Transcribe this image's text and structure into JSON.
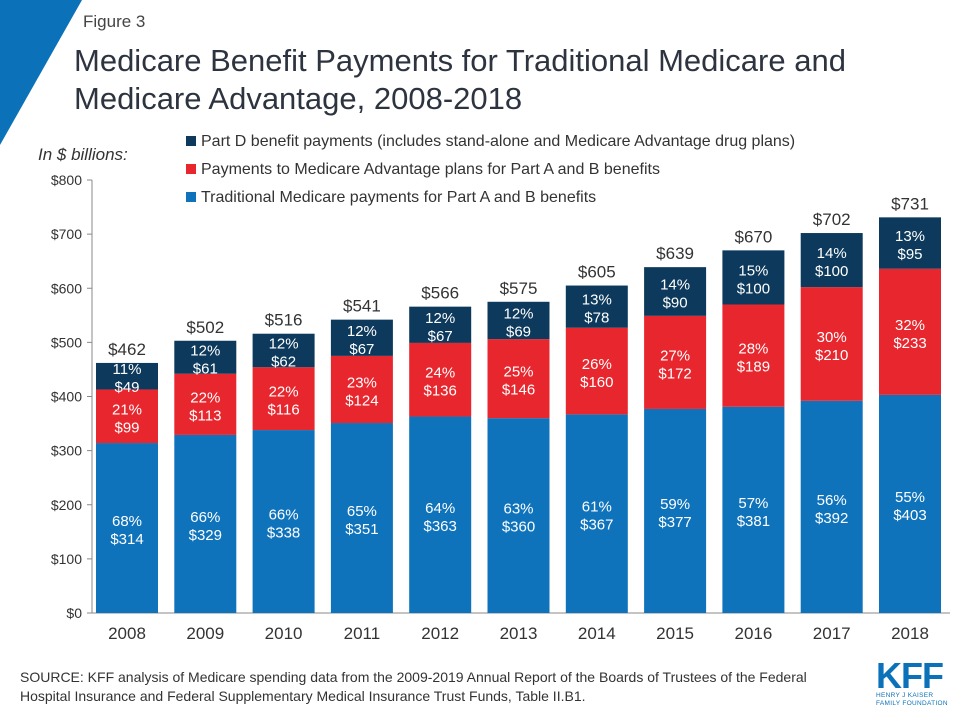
{
  "figure_label": "Figure 3",
  "title": "Medicare Benefit Payments for Traditional Medicare and Medicare Advantage, 2008-2018",
  "source": "SOURCE: KFF analysis of Medicare spending data from the 2009-2019 Annual Report of the Boards of Trustees of the Federal Hospital Insurance  and Federal Supplementary Medical Insurance  Trust Funds, Table II.B1.",
  "logo": {
    "text": "KFF",
    "subtitle_line1": "HENRY J KAISER",
    "subtitle_line2": "FAMILY FOUNDATION"
  },
  "colors": {
    "accent_triangle": "#0b72b9",
    "traditional": "#0f73bc",
    "advantage": "#e8262d",
    "partd": "#0d3a5c"
  },
  "chart_data": {
    "type": "bar",
    "stacked": true,
    "ylabel": "In $ billions:",
    "ylim": [
      0,
      800
    ],
    "yticks": [
      "$0",
      "$100",
      "$200",
      "$300",
      "$400",
      "$500",
      "$600",
      "$700",
      "$800"
    ],
    "ytick_values": [
      0,
      100,
      200,
      300,
      400,
      500,
      600,
      700,
      800
    ],
    "grid": false,
    "legend_position": "top",
    "categories": [
      "2008",
      "2009",
      "2010",
      "2011",
      "2012",
      "2013",
      "2014",
      "2015",
      "2016",
      "2017",
      "2018"
    ],
    "totals": [
      "$462",
      "$502",
      "$516",
      "$541",
      "$566",
      "$575",
      "$605",
      "$639",
      "$670",
      "$702",
      "$731"
    ],
    "series": [
      {
        "name": "Traditional Medicare payments for Part A and B benefits",
        "color": "#0f73bc",
        "values": [
          314,
          329,
          338,
          351,
          363,
          360,
          367,
          377,
          381,
          392,
          403
        ],
        "labels": [
          "$314",
          "$329",
          "$338",
          "$351",
          "$363",
          "$360",
          "$367",
          "$377",
          "$381",
          "$392",
          "$403"
        ],
        "percents": [
          "68%",
          "66%",
          "66%",
          "65%",
          "64%",
          "63%",
          "61%",
          "59%",
          "57%",
          "56%",
          "55%"
        ]
      },
      {
        "name": "Payments to Medicare Advantage plans for Part A and B benefits",
        "color": "#e8262d",
        "values": [
          99,
          113,
          116,
          124,
          136,
          146,
          160,
          172,
          189,
          210,
          233
        ],
        "labels": [
          "$99",
          "$113",
          "$116",
          "$124",
          "$136",
          "$146",
          "$160",
          "$172",
          "$189",
          "$210",
          "$233"
        ],
        "percents": [
          "21%",
          "22%",
          "22%",
          "23%",
          "24%",
          "25%",
          "26%",
          "27%",
          "28%",
          "30%",
          "32%"
        ]
      },
      {
        "name": "Part D benefit payments (includes stand-alone and Medicare Advantage drug plans)",
        "color": "#0d3a5c",
        "values": [
          49,
          61,
          62,
          67,
          67,
          69,
          78,
          90,
          100,
          100,
          95
        ],
        "labels": [
          "$49",
          "$61",
          "$62",
          "$67",
          "$67",
          "$69",
          "$78",
          "$90",
          "$100",
          "$100",
          "$95"
        ],
        "percents": [
          "11%",
          "12%",
          "12%",
          "12%",
          "12%",
          "12%",
          "13%",
          "14%",
          "15%",
          "14%",
          "13%"
        ]
      }
    ]
  }
}
